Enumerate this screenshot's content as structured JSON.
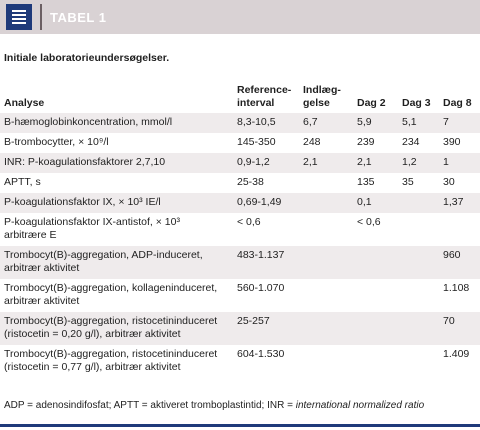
{
  "header": {
    "title": "TABEL 1",
    "icon": "table-icon"
  },
  "caption": "Initiale laboratorieundersøgelser.",
  "table": {
    "headers": [
      "Analyse",
      "Reference-\ninterval",
      "Indlæg-\ngelse",
      "Dag 2",
      "Dag 3",
      "Dag 8"
    ],
    "rows": [
      [
        "B-hæmoglobinkoncentration, mmol/l",
        "8,3-10,5",
        "6,7",
        "5,9",
        "5,1",
        "7"
      ],
      [
        "B-trombocytter, × 10⁹/l",
        "145-350",
        "248",
        "239",
        "234",
        "390"
      ],
      [
        "INR: P-koagulationsfaktorer 2,7,10",
        "0,9-1,2",
        "2,1",
        "2,1",
        "1,2",
        "1"
      ],
      [
        "APTT, s",
        "25-38",
        "",
        "135",
        "35",
        "30"
      ],
      [
        "P-koagulationsfaktor IX, × 10³ IE/l",
        "0,69-1,49",
        "",
        "0,1",
        "",
        "1,37"
      ],
      [
        "P-koagulationsfaktor IX-antistof, × 10³\narbitrære E",
        "< 0,6",
        "",
        "< 0,6",
        "",
        ""
      ],
      [
        "Trombocyt(B)-aggregation, ADP-induceret,\narbitrær aktivitet",
        "483-1.137",
        "",
        "",
        "",
        "960"
      ],
      [
        "Trombocyt(B)-aggregation, kollageninduceret,\narbitrær aktivitet",
        "560-1.070",
        "",
        "",
        "",
        "1.108"
      ],
      [
        "Trombocyt(B)-aggregation, ristocetininduceret\n(ristocetin = 0,20 g/l), arbitrær aktivitet",
        "25-257",
        "",
        "",
        "",
        "70"
      ],
      [
        "Trombocyt(B)-aggregation, ristocetininduceret\n(ristocetin = 0,77 g/l), arbitrær aktivitet",
        "604-1.530",
        "",
        "",
        "",
        "1.409"
      ]
    ]
  },
  "footnote": {
    "plain": "ADP = adenosindifosfat;  APTT = aktiveret tromboplastintid;  INR = ",
    "italic": "international normalized ratio"
  },
  "colors": {
    "accent": "#1f3a7a",
    "header_bg": "#d9d2d4",
    "row_shade": "#efebec"
  }
}
